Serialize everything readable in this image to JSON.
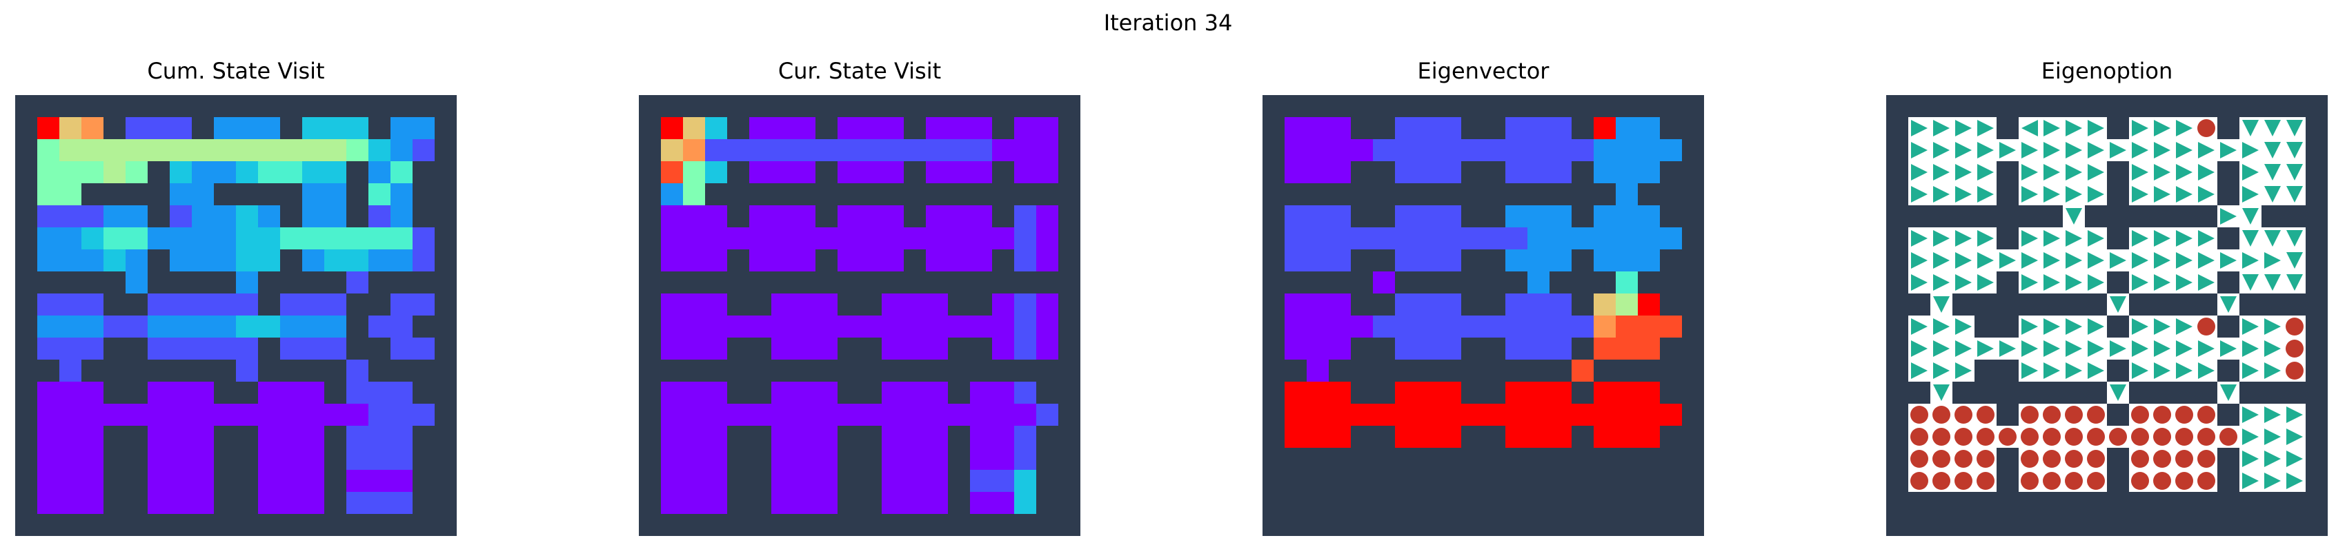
{
  "figure": {
    "title": "Iteration 34"
  },
  "colors": {
    "wall": "#2e3b4e",
    "floor": "#ffffff",
    "arrow": "#1fae92",
    "terminal": "#c0392b",
    "colormap": [
      "#7f00ff",
      "#4c50fc",
      "#1996f3",
      "#1ac7e2",
      "#4cf2ce",
      "#80ffb4",
      "#b2f296",
      "#e6c774",
      "#ff964f",
      "#ff4c27",
      "#ff0000"
    ]
  },
  "chart_data": [
    {
      "type": "heatmap",
      "title": "Cum. State Visit",
      "grid_size": 20,
      "value_range": [
        0,
        10
      ],
      "cells_note": "rows: 20 strings, one char per cell; '#' wall, digit 0-9 or 'A'(=10) visit intensity",
      "rows": [
        "####################",
        "#A78#111#222#333#22#",
        "#566666666666665321#",
        "#55565#32234433#24##",
        "#55####22####22#42##",
        "#11122#12232#22#12##",
        "#223442222334444441#",
        "#22232#22233#233221#",
        "#####2####2####1####",
        "#111##11111#111##11#",
        "#22211222233222#11##",
        "#111##11111#111##11#",
        "##1#######1####1####",
        "#000##000##000#111##",
        "#000000000000000111#",
        "#000##000##000#111##",
        "#000##000##000#111##",
        "#000##000##000#000##",
        "#000##000##000#111##",
        "####################"
      ]
    },
    {
      "type": "heatmap",
      "title": "Cur. State Visit",
      "grid_size": 20,
      "value_range": [
        0,
        10
      ],
      "cells_note": "rows: 20 strings, one char per cell; '#' wall, digit 0-9 or 'A'(=10) visit intensity",
      "rows": [
        "####################",
        "#A73#000#000#000#00#",
        "#781111111111111000#",
        "#953#000#000#000#00#",
        "#25#################",
        "#000#000#000#000#10#",
        "#000000000000000010#",
        "#000#000#000#000#10#",
        "####################",
        "#000##000##000##010#",
        "#000000000000000010#",
        "#000##000##000##010#",
        "####################",
        "#000##000##000#001##",
        "#000000000000000001#",
        "#000##000##000#001##",
        "#000##000##000#001##",
        "#000##000##000#113##",
        "#000##000##000#003##",
        "####################"
      ]
    },
    {
      "type": "heatmap",
      "title": "Eigenvector",
      "grid_size": 20,
      "value_range": [
        0,
        10
      ],
      "cells_note": "rows: 20 strings, one char per cell; '#' wall, digit 0-9 or 'A'(=10) eigenvector value",
      "rows": [
        "####################",
        "#000##111##111#A22##",
        "#000011111111112222#",
        "#000##111##111#222##",
        "################2###",
        "#111##111##222#222##",
        "#111111111112222222#",
        "#111##111##222#222##",
        "#####0######2###4###",
        "#000##111##111#76A##",
        "#000011111111118999#",
        "#000##111##111#999##",
        "##0###########9#####",
        "#AAA##AAA##AAA#AAA##",
        "#AAAAAAAAAAAAAAAAAA#",
        "#AAA##AAA##AAA#AAA##",
        "####################",
        "####################",
        "####################",
        "####################"
      ]
    },
    {
      "type": "table",
      "title": "Eigenoption",
      "grid_size": 20,
      "cells_note": "rows: 20 strings; '#' wall, R/L/U/D arrow direction of the option policy, 'T' terminal state",
      "rows": [
        "####################",
        "#RRRR#LRRR#RRRT#DDD#",
        "#RRRRRRRRRRRRRRRRDD#",
        "#RRRR#RRRR#RRRR#RDD#",
        "#RRRR#RRRR#RRRR#RDD#",
        "########D######RD###",
        "#RRRR#RRRR#RRRR#DDD#",
        "#RRRRRRRRRRRRRRRRRD#",
        "#RRRR#RRRR#RRRR#DDD#",
        "##D#######D####D####",
        "#RRR##RRRR#RRRT#RRT#",
        "#RRRRRRRRRRRRRRRRRT#",
        "#RRR##RRRR#RRRR#RRT#",
        "##D#######D####D####",
        "#TTTT#TTTT#TTTT#RRR#",
        "#TTTTTTTTTTTTTTTRRR#",
        "#TTTT#TTTT#TTTT#RRR#",
        "#TTTT#TTTT#TTTT#RRR#",
        "####################",
        "####################"
      ]
    }
  ]
}
